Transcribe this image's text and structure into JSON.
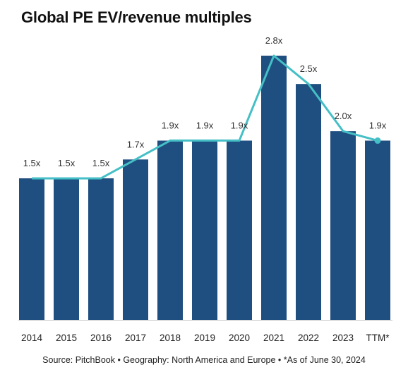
{
  "chart_data": {
    "type": "bar",
    "title": "Global PE EV/revenue multiples",
    "categories": [
      "2014",
      "2015",
      "2016",
      "2017",
      "2018",
      "2019",
      "2020",
      "2021",
      "2022",
      "2023",
      "TTM*"
    ],
    "values": [
      1.5,
      1.5,
      1.5,
      1.7,
      1.9,
      1.9,
      1.9,
      2.8,
      2.5,
      2.0,
      1.9
    ],
    "data_labels": [
      "1.5x",
      "1.5x",
      "1.5x",
      "1.7x",
      "1.9x",
      "1.9x",
      "1.9x",
      "2.8x",
      "2.5x",
      "2.0x",
      "1.9x"
    ],
    "ylim": [
      0,
      2.8
    ],
    "grid": false,
    "overlay_line": true,
    "colors": {
      "bar": "#1f4e80",
      "line": "#45bfc6",
      "baseline": "#cccccc"
    }
  },
  "source": "Source: PitchBook • Geography: North America and Europe • *As of June 30, 2024"
}
